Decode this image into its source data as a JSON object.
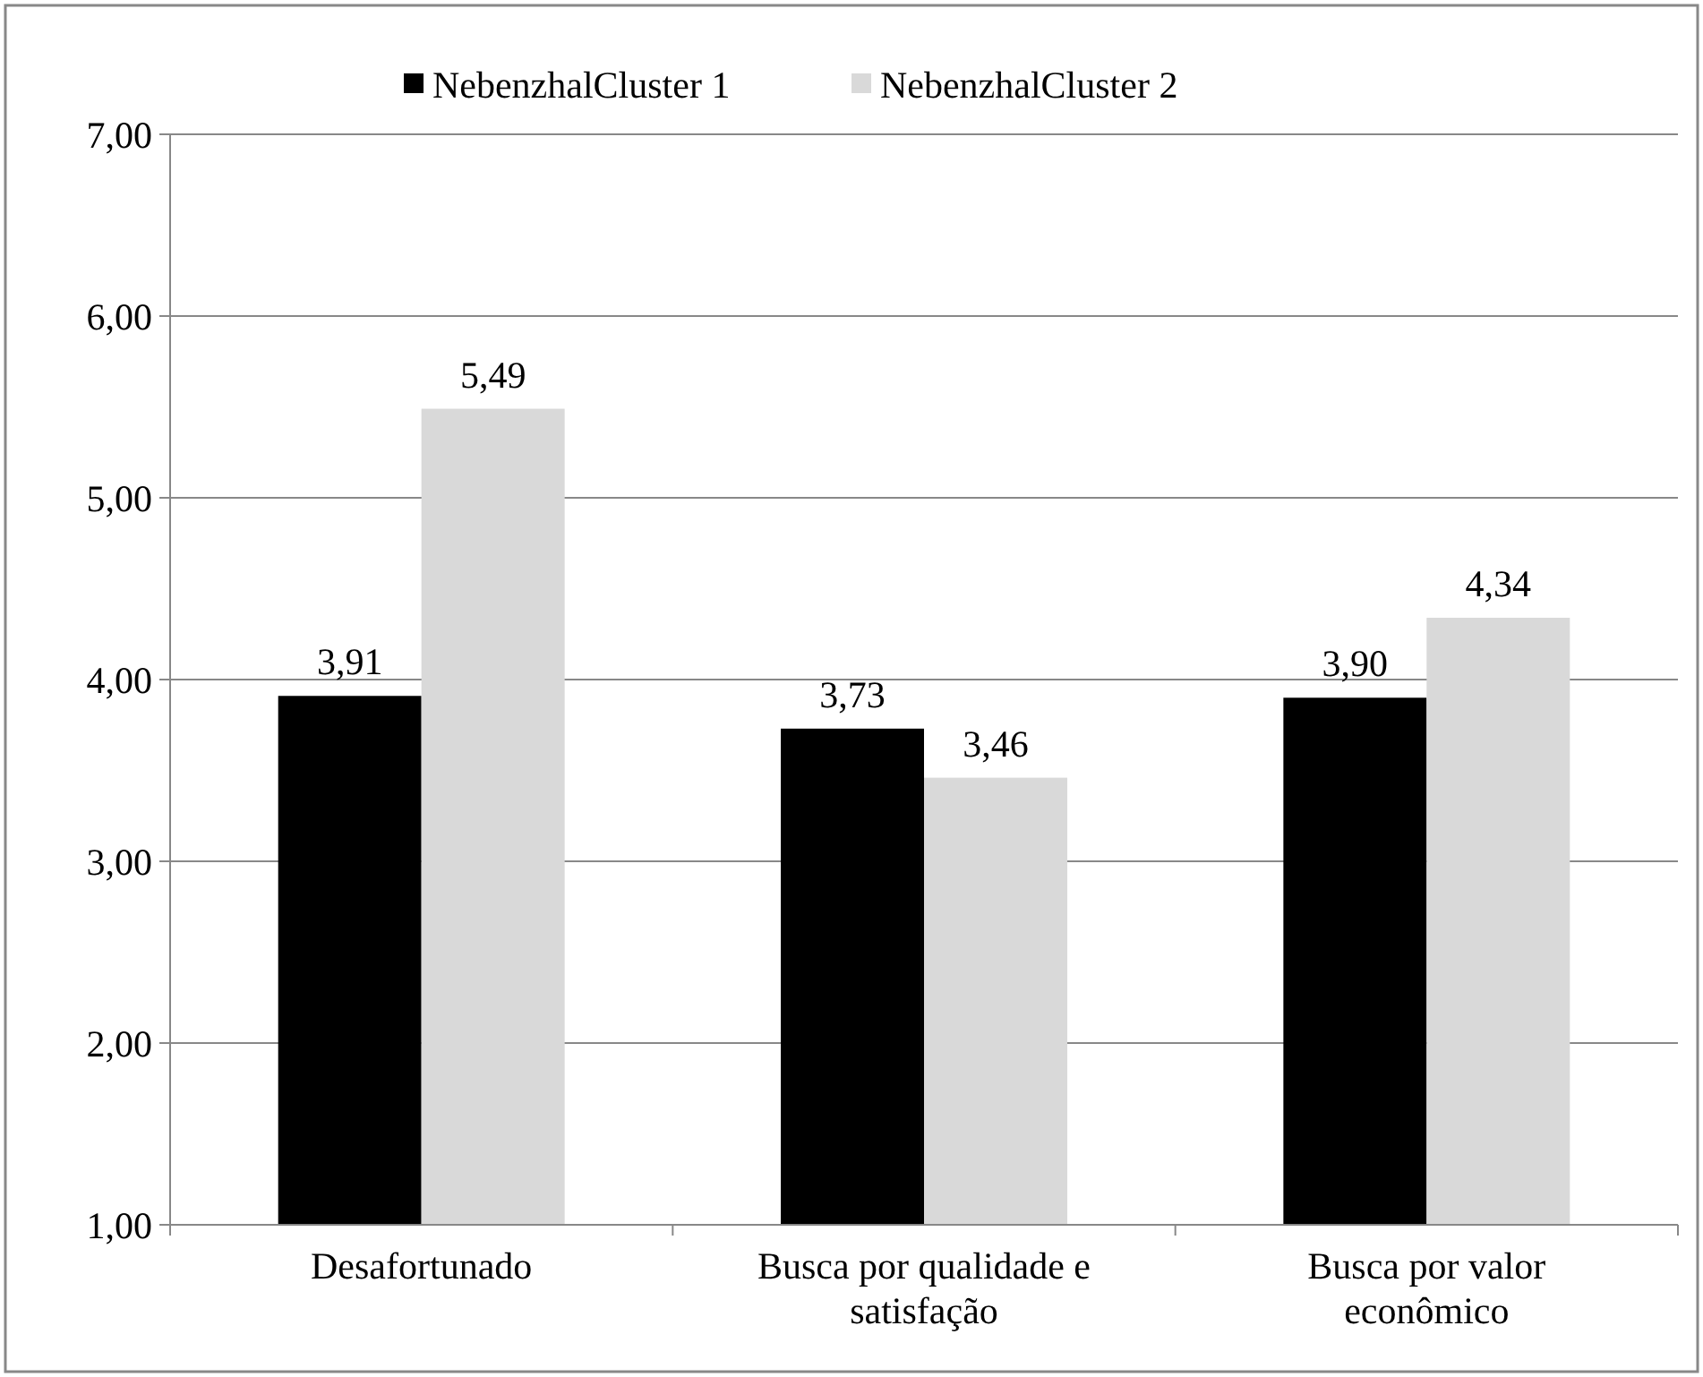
{
  "chart_data": {
    "type": "bar",
    "categories": [
      "Desafortunado",
      "Busca por qualidade e satisfação",
      "Busca por valor econômico"
    ],
    "series": [
      {
        "name": "NebenzhalCluster 1",
        "color": "#000000",
        "values": [
          3.91,
          3.73,
          3.9
        ],
        "value_labels": [
          "3,91",
          "3,73",
          "3,90"
        ]
      },
      {
        "name": "NebenzhalCluster 2",
        "color": "#d9d9d9",
        "values": [
          5.49,
          3.46,
          4.34
        ],
        "value_labels": [
          "5,49",
          "3,46",
          "4,34"
        ]
      }
    ],
    "ylim": [
      1,
      7
    ],
    "yticks": [
      {
        "value": 1,
        "label": "1,00"
      },
      {
        "value": 2,
        "label": "2,00"
      },
      {
        "value": 3,
        "label": "3,00"
      },
      {
        "value": 4,
        "label": "4,00"
      },
      {
        "value": 5,
        "label": "5,00"
      },
      {
        "value": 6,
        "label": "6,00"
      },
      {
        "value": 7,
        "label": "7,00"
      }
    ],
    "grid": "y",
    "legend": "top"
  }
}
